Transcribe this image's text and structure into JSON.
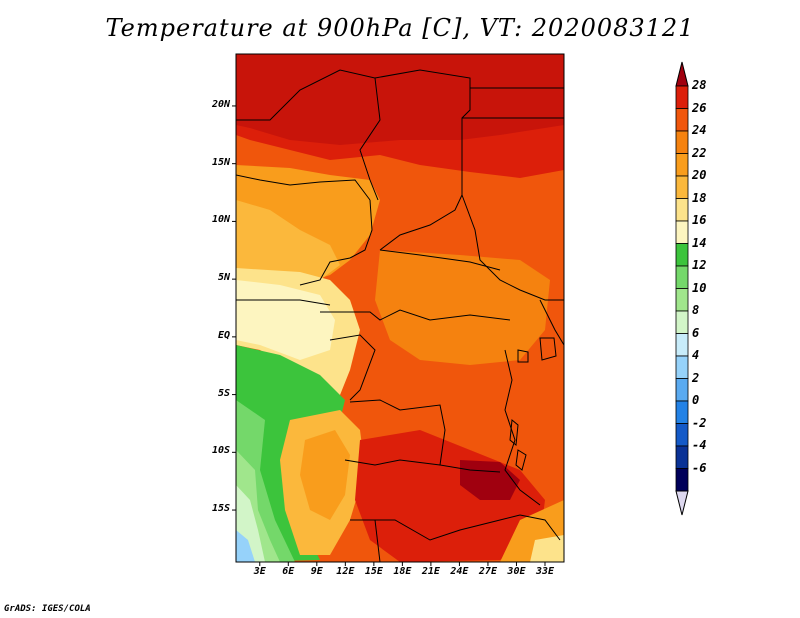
{
  "title": "Temperature at 900hPa [C], VT: 2020083121",
  "credit": "GrADS: IGES/COLA",
  "map": {
    "lat_labels": [
      "20N",
      "15N",
      "10N",
      "5N",
      "EQ",
      "5S",
      "10S",
      "15S"
    ],
    "lat_values": [
      20,
      15,
      10,
      5,
      0,
      -5,
      -10,
      -15
    ],
    "lon_labels": [
      "3E",
      "6E",
      "9E",
      "12E",
      "15E",
      "18E",
      "21E",
      "24E",
      "27E",
      "30E",
      "33E"
    ],
    "lon_values": [
      3,
      6,
      9,
      12,
      15,
      18,
      21,
      24,
      27,
      30,
      33
    ],
    "lat_range": [
      -19.5,
      24.5
    ],
    "lon_range": [
      0.5,
      35
    ]
  },
  "colorbar": {
    "labels": [
      "28",
      "26",
      "24",
      "22",
      "20",
      "18",
      "16",
      "14",
      "12",
      "10",
      "8",
      "6",
      "4",
      "2",
      "0",
      "-2",
      "-4",
      "-6"
    ],
    "colors": [
      "#a0000f",
      "#dc1f0a",
      "#f0560c",
      "#f5820f",
      "#f99d1c",
      "#fbb83c",
      "#fde38b",
      "#fdf5c0",
      "#3cc43c",
      "#74d86a",
      "#a0e68c",
      "#d2f5c8",
      "#c8ecfa",
      "#96d2fa",
      "#5aaaf0",
      "#2382e6",
      "#145ac8",
      "#0a3296",
      "#00005a",
      "#ddd8ef"
    ]
  }
}
